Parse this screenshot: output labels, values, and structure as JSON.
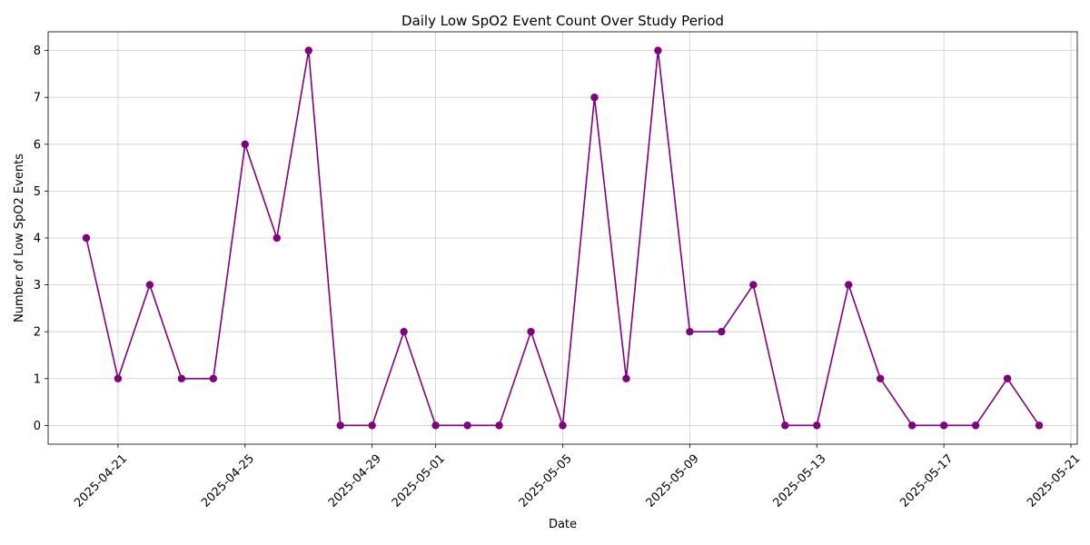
{
  "chart_data": {
    "type": "line",
    "title": "Daily Low SpO2 Event Count Over Study Period",
    "xlabel": "Date",
    "ylabel": "Number of Low SpO2 Events",
    "x": [
      "2025-04-20",
      "2025-04-21",
      "2025-04-22",
      "2025-04-23",
      "2025-04-24",
      "2025-04-25",
      "2025-04-26",
      "2025-04-27",
      "2025-04-28",
      "2025-04-29",
      "2025-04-30",
      "2025-05-01",
      "2025-05-02",
      "2025-05-03",
      "2025-05-04",
      "2025-05-05",
      "2025-05-06",
      "2025-05-07",
      "2025-05-08",
      "2025-05-09",
      "2025-05-10",
      "2025-05-11",
      "2025-05-12",
      "2025-05-13",
      "2025-05-14",
      "2025-05-15",
      "2025-05-16",
      "2025-05-17",
      "2025-05-18",
      "2025-05-19",
      "2025-05-20"
    ],
    "values": [
      4,
      1,
      3,
      1,
      1,
      6,
      4,
      8,
      0,
      0,
      2,
      0,
      0,
      0,
      2,
      0,
      7,
      1,
      8,
      2,
      2,
      3,
      0,
      0,
      3,
      1,
      0,
      0,
      0,
      1,
      0
    ],
    "x_ticks": [
      "2025-04-21",
      "2025-04-25",
      "2025-04-29",
      "2025-05-01",
      "2025-05-05",
      "2025-05-09",
      "2025-05-13",
      "2025-05-17",
      "2025-05-21"
    ],
    "y_ticks": [
      0,
      1,
      2,
      3,
      4,
      5,
      6,
      7,
      8
    ],
    "ylim": [
      -0.4,
      8.4
    ],
    "xlim": [
      "2025-04-18T19:12",
      "2025-05-21T04:48"
    ],
    "grid": true,
    "line_color": "#800080",
    "marker": "circle"
  }
}
